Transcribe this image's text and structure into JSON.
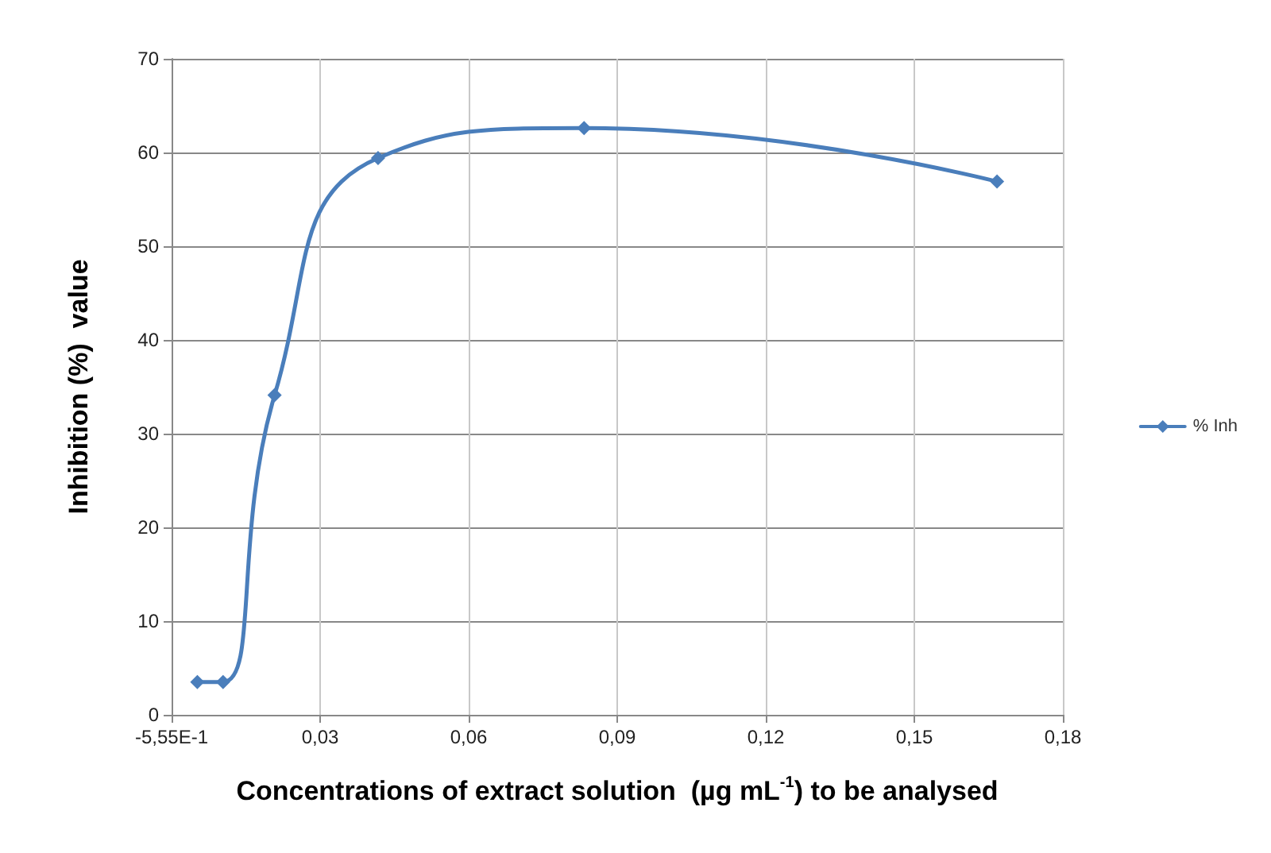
{
  "chart_data": {
    "type": "line",
    "xlabel": "Concentrations of extract solution  (µg mL$^{-1}$) to be analysed",
    "ylabel": "Inhibition (%)  value",
    "x": [
      0.0052,
      0.0104,
      0.0208,
      0.0417,
      0.0833,
      0.1667
    ],
    "series": [
      {
        "name": "% Inh",
        "color": "#4a7ebb",
        "values": [
          3.5,
          3.5,
          34.1,
          59.4,
          62.6,
          56.9
        ]
      }
    ],
    "xlim": [
      0,
      0.18
    ],
    "xticks": [
      {
        "value": 0,
        "label": "-5,55E-1"
      },
      {
        "value": 0.03,
        "label": "0,03"
      },
      {
        "value": 0.06,
        "label": "0,06"
      },
      {
        "value": 0.09,
        "label": "0,09"
      },
      {
        "value": 0.12,
        "label": "0,12"
      },
      {
        "value": 0.15,
        "label": "0,15"
      },
      {
        "value": 0.18,
        "label": "0,18"
      }
    ],
    "ylim": [
      0,
      70
    ],
    "yticks": [
      0,
      10,
      20,
      30,
      40,
      50,
      60,
      70
    ],
    "grid": true,
    "legend": "right",
    "marker": "diamond",
    "line_style": "solid"
  }
}
